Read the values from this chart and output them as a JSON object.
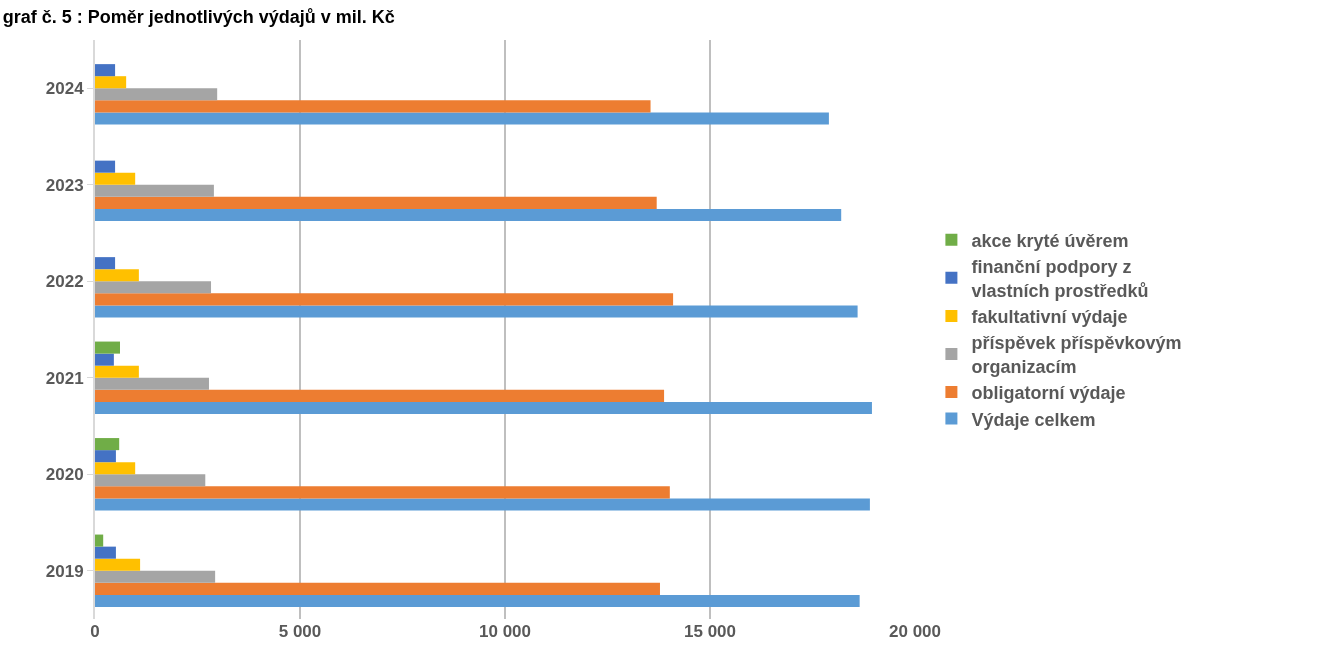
{
  "chart_data": {
    "type": "bar",
    "orientation": "horizontal",
    "title": "graf č. 5 : Poměr jednotlivých výdajů v mil. Kč",
    "categories": [
      "2024",
      "2023",
      "2022",
      "2021",
      "2020",
      "2019"
    ],
    "series": [
      {
        "name": "Výdaje celkem",
        "color": "#5b9bd5",
        "values": [
          17900,
          18200,
          18600,
          18950,
          18900,
          18650
        ]
      },
      {
        "name": "obligatorní výdaje",
        "color": "#ed7d31",
        "values": [
          13550,
          13700,
          14100,
          13880,
          14020,
          13780
        ]
      },
      {
        "name": "příspěvek příspěvkovým organizacím",
        "color": "#a5a5a5",
        "values": [
          2980,
          2900,
          2830,
          2780,
          2690,
          2930
        ]
      },
      {
        "name": "fakultativní výdaje",
        "color": "#ffc000",
        "values": [
          760,
          980,
          1070,
          1070,
          980,
          1100
        ]
      },
      {
        "name": "finanční podpory z vlastních prostředků",
        "color": "#4472c4",
        "values": [
          490,
          490,
          490,
          460,
          510,
          510
        ]
      },
      {
        "name": "akce kryté úvěrem",
        "color": "#70ad47",
        "values": [
          null,
          null,
          null,
          610,
          590,
          200
        ]
      }
    ],
    "xlim": [
      0,
      20000
    ],
    "xticks": [
      0,
      {
        "value": 5000,
        "label": "5 000"
      },
      {
        "value": 10000,
        "label": "10 000"
      },
      {
        "value": 15000,
        "label": "15 000"
      },
      {
        "value": 20000,
        "label": "20 000"
      }
    ],
    "grid": "x",
    "legend": "right"
  }
}
